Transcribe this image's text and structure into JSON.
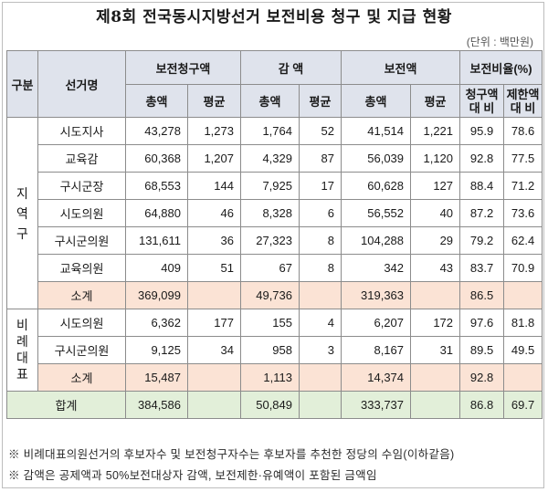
{
  "title": "제8회 전국동시지방선거 보전비용 청구 및 지급 현황",
  "unit": "(단위 : 백만원)",
  "headers": {
    "category": "구분",
    "election": "선거명",
    "claim": "보전청구액",
    "reduction": "감 액",
    "compensation": "보전액",
    "ratio": "보전비율(%)",
    "total": "총액",
    "average": "평균",
    "ratio_claim": "청구액 대 비",
    "ratio_limit": "제한액 대 비"
  },
  "groups": {
    "regional": "지 역 구",
    "proportional": "비 례 대 표"
  },
  "regional_rows": [
    {
      "name": "시도지사",
      "claim_total": "43,278",
      "claim_avg": "1,273",
      "red_total": "1,764",
      "red_avg": "52",
      "comp_total": "41,514",
      "comp_avg": "1,221",
      "ratio_claim": "95.9",
      "ratio_limit": "78.6"
    },
    {
      "name": "교육감",
      "claim_total": "60,368",
      "claim_avg": "1,207",
      "red_total": "4,329",
      "red_avg": "87",
      "comp_total": "56,039",
      "comp_avg": "1,120",
      "ratio_claim": "92.8",
      "ratio_limit": "77.5"
    },
    {
      "name": "구시군장",
      "claim_total": "68,553",
      "claim_avg": "144",
      "red_total": "7,925",
      "red_avg": "17",
      "comp_total": "60,628",
      "comp_avg": "127",
      "ratio_claim": "88.4",
      "ratio_limit": "71.2"
    },
    {
      "name": "시도의원",
      "claim_total": "64,880",
      "claim_avg": "46",
      "red_total": "8,328",
      "red_avg": "6",
      "comp_total": "56,552",
      "comp_avg": "40",
      "ratio_claim": "87.2",
      "ratio_limit": "73.6"
    },
    {
      "name": "구시군의원",
      "claim_total": "131,611",
      "claim_avg": "36",
      "red_total": "27,323",
      "red_avg": "8",
      "comp_total": "104,288",
      "comp_avg": "29",
      "ratio_claim": "79.2",
      "ratio_limit": "62.4"
    },
    {
      "name": "교육의원",
      "claim_total": "409",
      "claim_avg": "51",
      "red_total": "67",
      "red_avg": "8",
      "comp_total": "342",
      "comp_avg": "43",
      "ratio_claim": "83.7",
      "ratio_limit": "70.9"
    }
  ],
  "regional_subtotal": {
    "label": "소계",
    "claim_total": "369,099",
    "red_total": "49,736",
    "comp_total": "319,363",
    "ratio_claim": "86.5"
  },
  "proportional_rows": [
    {
      "name": "시도의원",
      "claim_total": "6,362",
      "claim_avg": "177",
      "red_total": "155",
      "red_avg": "4",
      "comp_total": "6,207",
      "comp_avg": "172",
      "ratio_claim": "97.6",
      "ratio_limit": "81.8"
    },
    {
      "name": "구시군의원",
      "claim_total": "9,125",
      "claim_avg": "34",
      "red_total": "958",
      "red_avg": "3",
      "comp_total": "8,167",
      "comp_avg": "31",
      "ratio_claim": "89.5",
      "ratio_limit": "49.5"
    }
  ],
  "proportional_subtotal": {
    "label": "소계",
    "claim_total": "15,487",
    "red_total": "1,113",
    "comp_total": "14,374",
    "ratio_claim": "92.8"
  },
  "grand_total": {
    "label": "합계",
    "claim_total": "384,586",
    "red_total": "50,849",
    "comp_total": "333,737",
    "ratio_claim": "86.8",
    "ratio_limit": "69.7"
  },
  "notes": [
    "※ 비례대표의원선거의 후보자수 및 보전청구자수는 후보자를 추천한 정당의 수임(이하같음)",
    "※ 감액은 공제액과 50%보전대상자 감액, 보전제한·유예액이 포함된 금액임"
  ],
  "colors": {
    "header_bg": "#dfe3ec",
    "subtotal_bg": "#fbe3d5",
    "total_bg": "#e2efd9"
  }
}
